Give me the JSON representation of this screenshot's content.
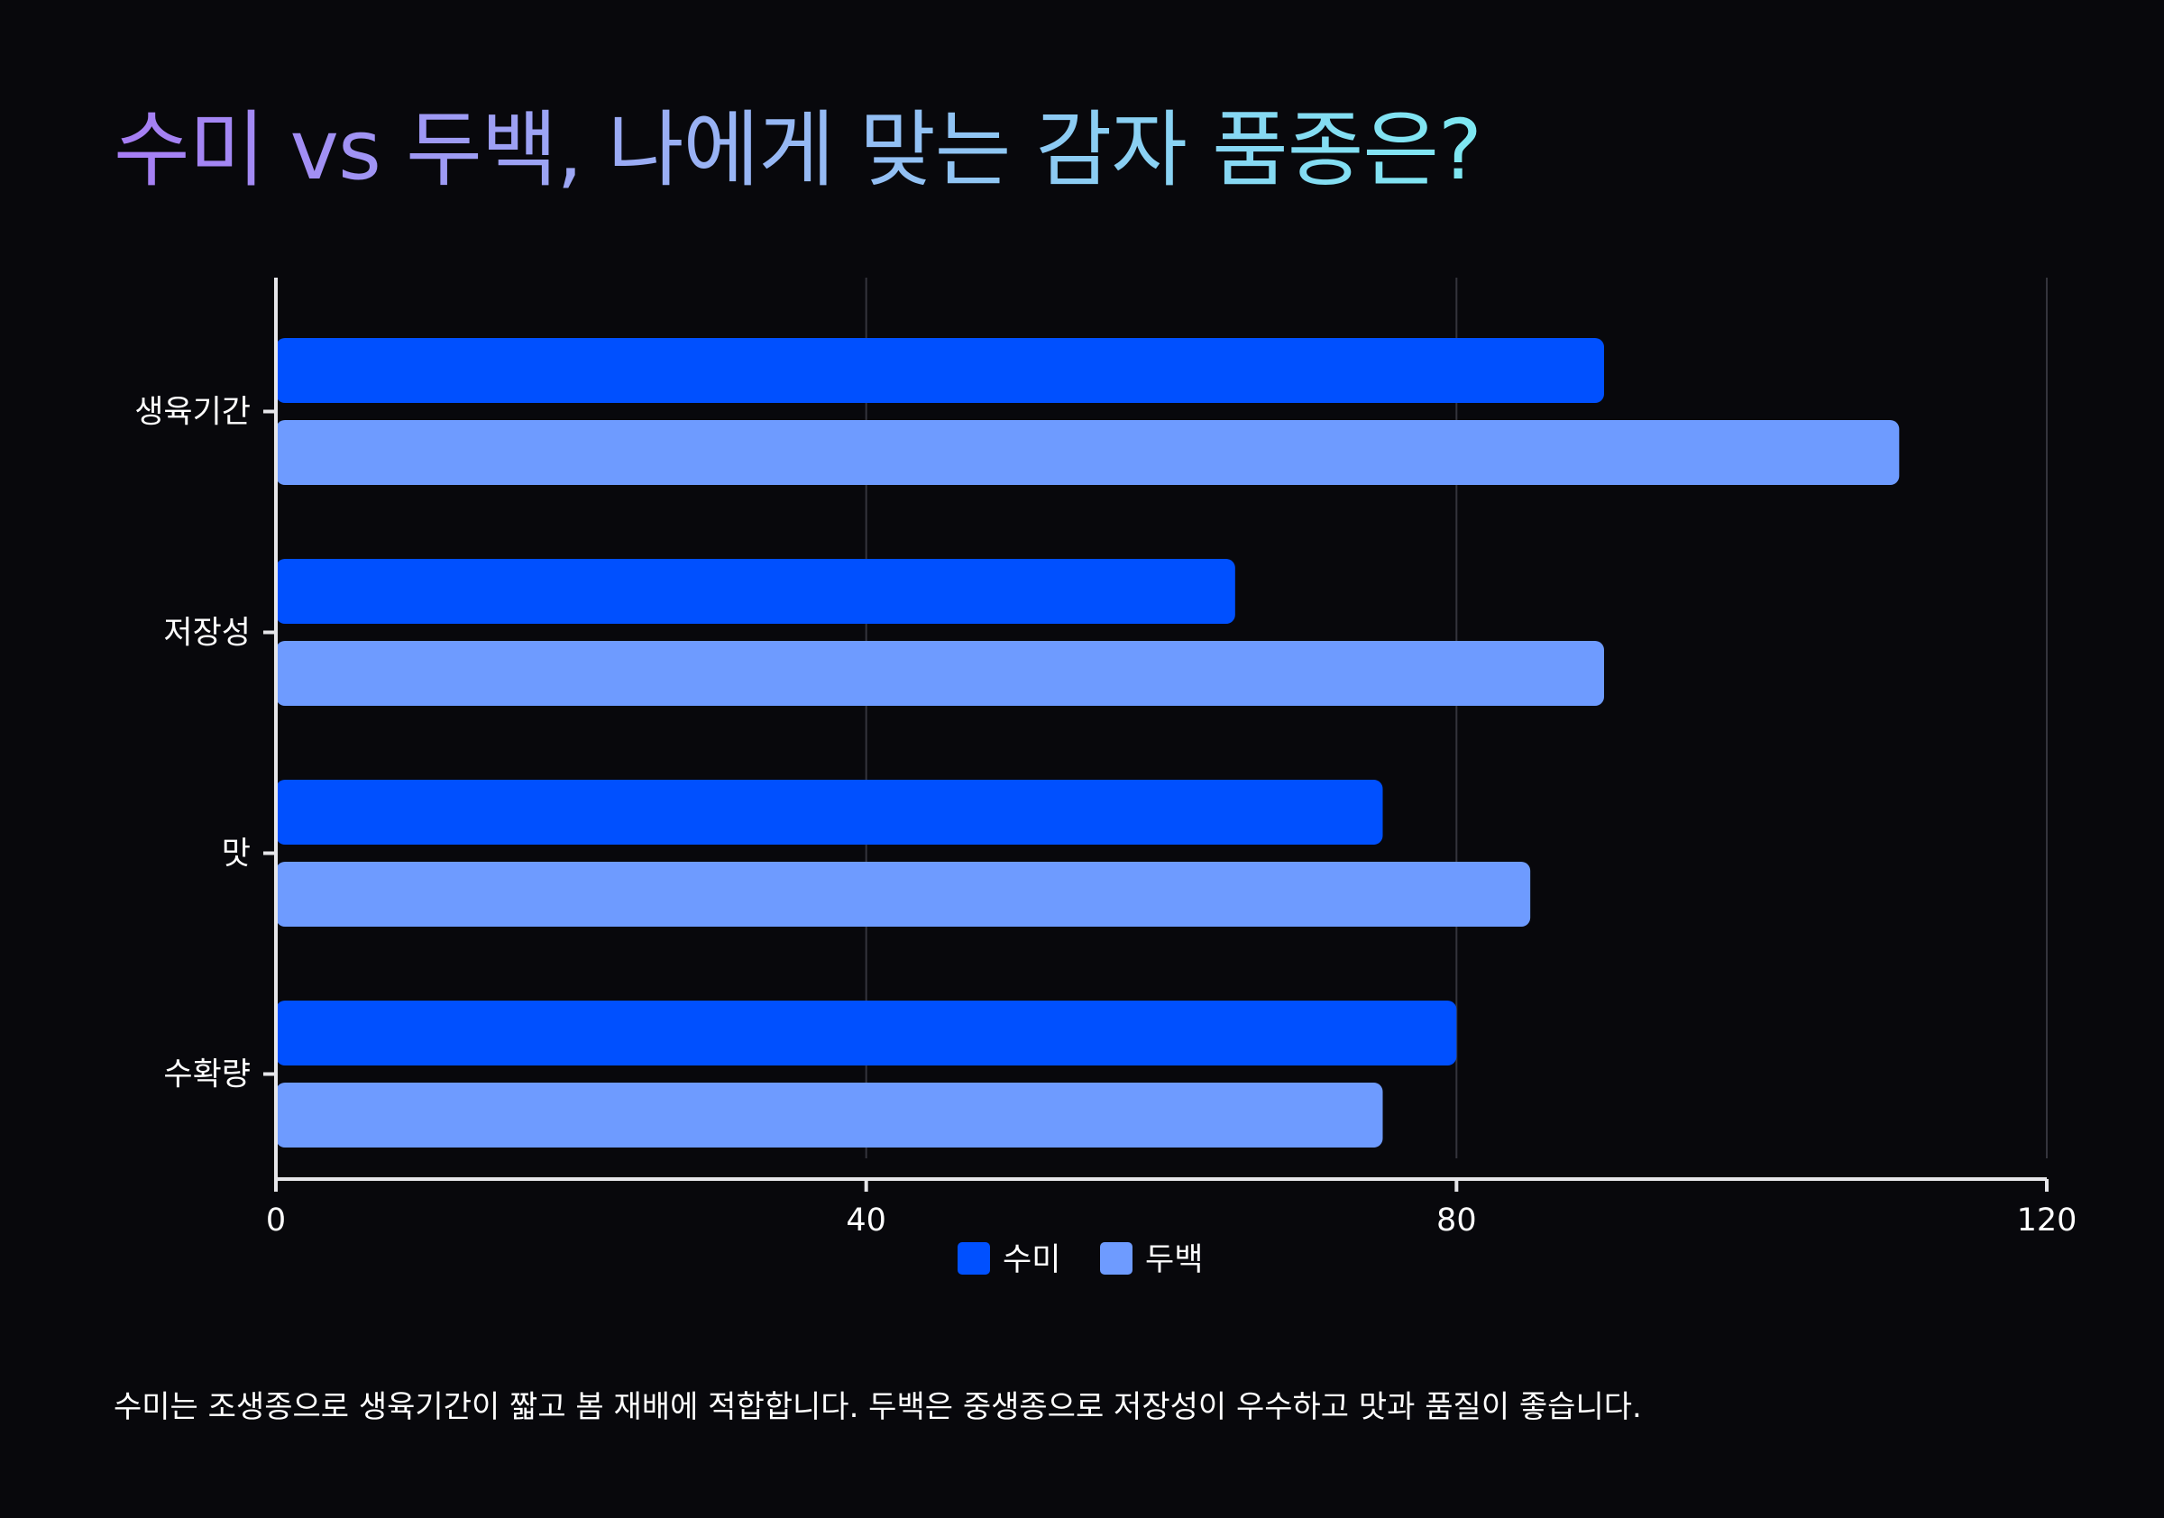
{
  "title": "수미 vs 두백, 나에게 맞는 감자 품종은?",
  "caption": "수미는 조생종으로 생육기간이 짧고 봄 재배에 적합합니다. 두백은 중생종으로 저장성이 우수하고 맛과 품질이 좋습니다.",
  "colors": {
    "background": "#08080c",
    "grid": "#34343c",
    "axis": "#e6e6ea"
  },
  "chart_data": {
    "type": "bar",
    "orientation": "horizontal",
    "categories": [
      "생육기간",
      "저장성",
      "맛",
      "수확량"
    ],
    "series": [
      {
        "name": "수미",
        "color": "#0050ff",
        "values": [
          90,
          65,
          75,
          80
        ]
      },
      {
        "name": "두백",
        "color": "#6e9bff",
        "values": [
          110,
          90,
          85,
          75
        ]
      }
    ],
    "xlim": [
      0,
      120
    ],
    "xticks": [
      0,
      40,
      80,
      120
    ],
    "grid": true,
    "legend": "bottom-center"
  }
}
